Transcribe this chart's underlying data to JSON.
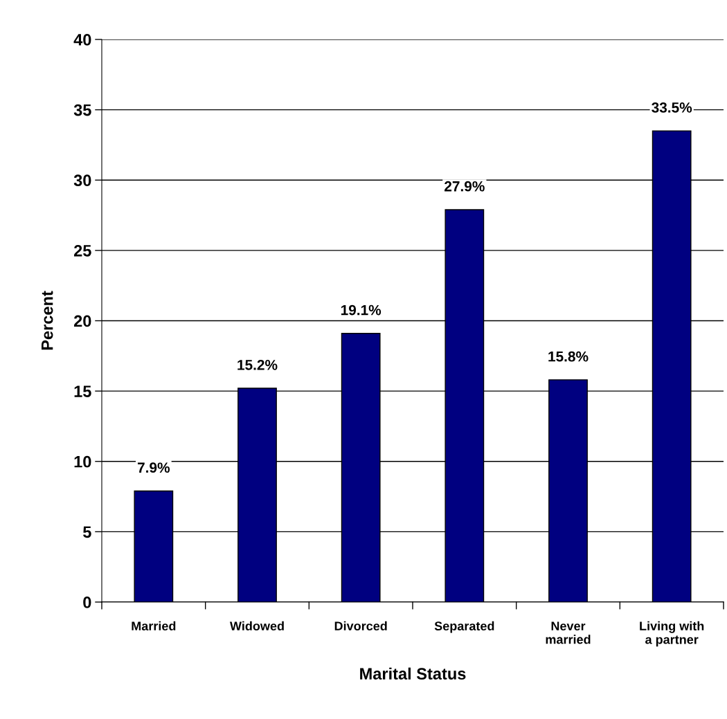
{
  "chart_data": {
    "type": "bar",
    "xlabel": "Marital Status",
    "ylabel": "Percent",
    "categories": [
      "Married",
      "Widowed",
      "Divorced",
      "Separated",
      "Never\nmarried",
      "Living with\na partner"
    ],
    "values": [
      7.9,
      15.2,
      19.1,
      27.9,
      15.8,
      33.5
    ],
    "value_labels": [
      "7.9%",
      "15.2%",
      "19.1%",
      "27.9%",
      "15.8%",
      "33.5%"
    ],
    "color": "#000080",
    "ylim": [
      0,
      40
    ],
    "yticks": [
      0,
      5,
      10,
      15,
      20,
      25,
      30,
      35,
      40
    ],
    "grid": "y"
  }
}
